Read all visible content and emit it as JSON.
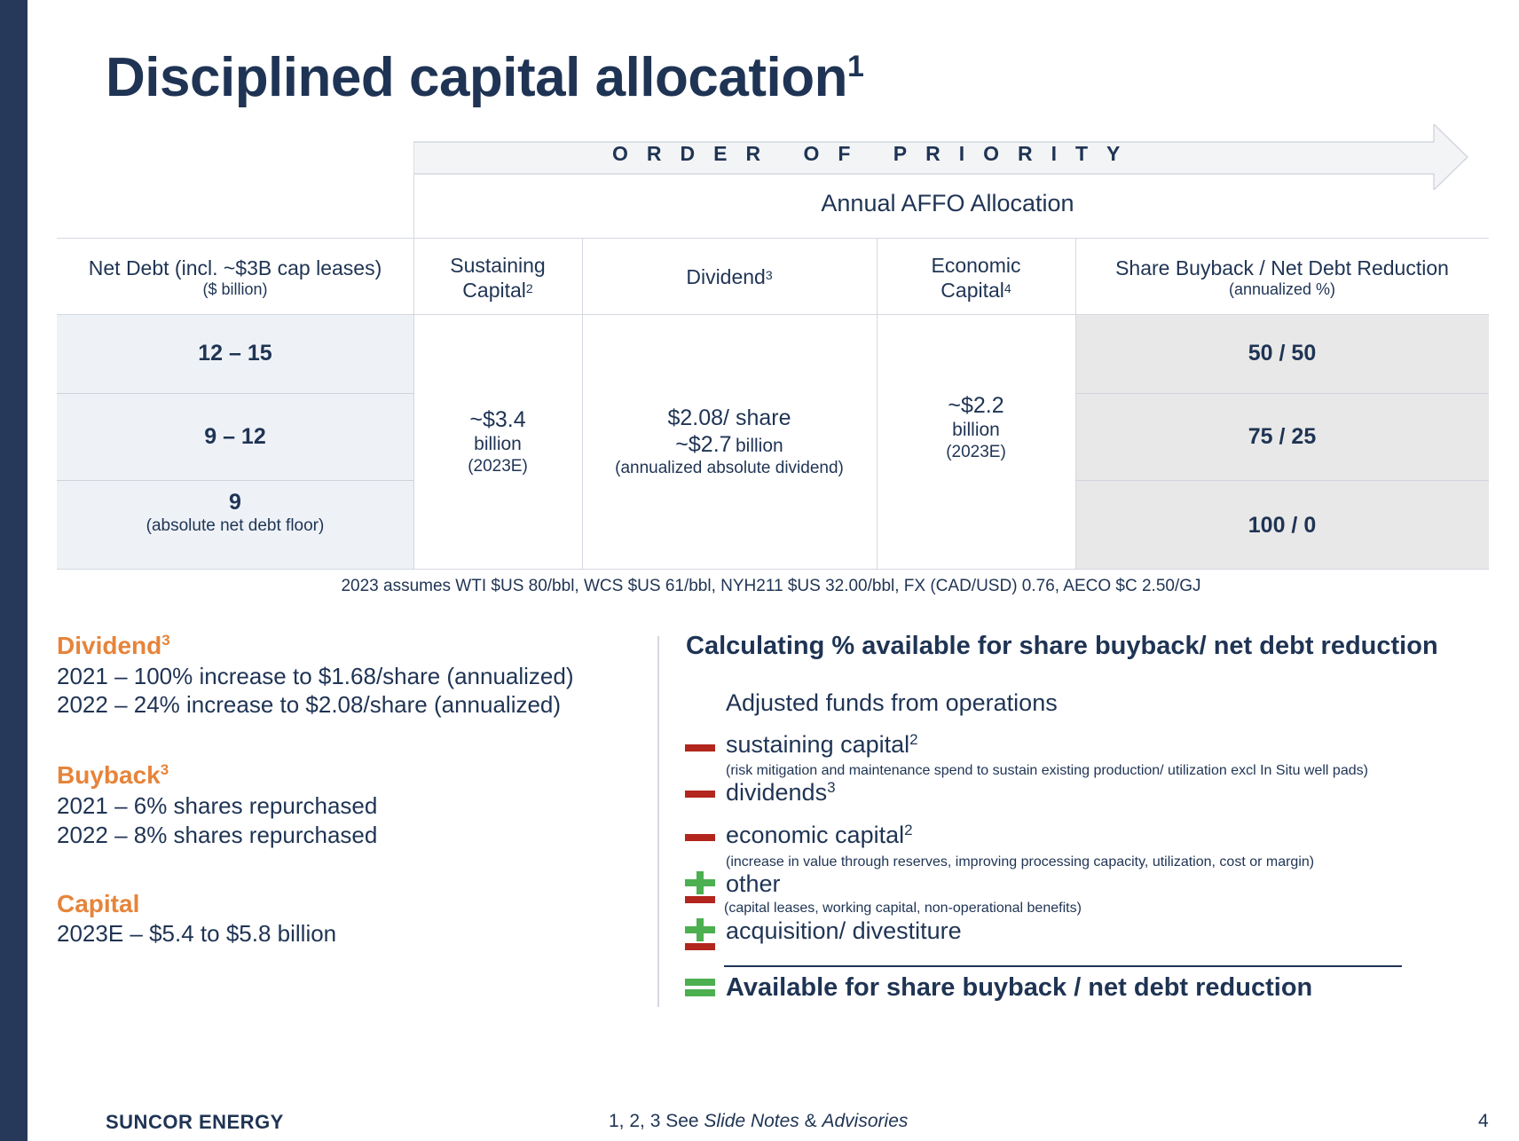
{
  "title": {
    "text": "Disciplined capital allocation",
    "sup": "1"
  },
  "header": {
    "priority": "ORDER OF PRIORITY",
    "affo": "Annual AFFO Allocation"
  },
  "table": {
    "columns": {
      "net_debt": {
        "label": "Net Debt (incl. ~$3B cap leases)",
        "sub": "($ billion)"
      },
      "sustaining": {
        "line1": "Sustaining",
        "line2": "Capital",
        "sup": "2"
      },
      "dividend": {
        "label": "Dividend",
        "sup": "3"
      },
      "economic": {
        "line1": "Economic",
        "line2": "Capital",
        "sup": "4"
      },
      "buyback": {
        "label": "Share Buyback / Net Debt Reduction",
        "sub": "(annualized %)"
      }
    },
    "net_debt_rows": [
      {
        "value": "12 – 15",
        "sub": ""
      },
      {
        "value": "9 – 12",
        "sub": ""
      },
      {
        "value": "9",
        "sub": "(absolute net debt floor)"
      }
    ],
    "buyback_rows": [
      "50 / 50",
      "75 / 25",
      "100 / 0"
    ],
    "sustaining_value": {
      "amount": "~$3.4",
      "unit": "billion",
      "period": "(2023E)"
    },
    "dividend_value": {
      "per_share": "$2.08/ share",
      "amount": "~$2.7",
      "unit": "billion",
      "note": "(annualized absolute dividend)"
    },
    "economic_value": {
      "amount": "~$2.2",
      "unit": "billion",
      "period": "(2023E)"
    }
  },
  "assumption": "2023 assumes WTI $US 80/bbl, WCS $US 61/bbl, NYH211  $US 32.00/bbl, FX (CAD/USD) 0.76, AECO $C 2.50/GJ",
  "left_sections": [
    {
      "head": "Dividend",
      "sup": "3",
      "lines": [
        "2021 – 100% increase to $1.68/share (annualized)",
        "2022 – 24% increase to $2.08/share (annualized)"
      ]
    },
    {
      "head": "Buyback",
      "sup": "3",
      "lines": [
        "2021 – 6% shares repurchased",
        "2022 – 8% shares repurchased"
      ]
    },
    {
      "head": "Capital",
      "sup": "",
      "lines": [
        "2023E – $5.4 to $5.8 billion"
      ]
    }
  ],
  "calc": {
    "title": "Calculating % available for share buyback/ net debt reduction",
    "afo": "Adjusted funds from operations",
    "items": [
      {
        "label": "sustaining capital",
        "sup": "2",
        "sub": "(risk mitigation  and maintenance  spend to sustain  existing  production/ utilization  excl In Situ well pads)",
        "sign": "minus"
      },
      {
        "label": "dividends",
        "sup": "3",
        "sub": "",
        "sign": "minus"
      },
      {
        "label": "economic capital",
        "sup": "2",
        "sub": "(increase  in value through reserves, improving  processing  capacity, utilization,  cost  or margin)",
        "sign": "minus"
      },
      {
        "label": "other",
        "sup": "",
        "sub": "(capital  leases,  working  capital, non-operational  benefits)",
        "sign": "plus-minus"
      },
      {
        "label": "acquisition/ divestiture",
        "sup": "",
        "sub": "",
        "sign": "plus-minus"
      }
    ],
    "result": "Available for share buyback / net debt reduction",
    "sign_colors": {
      "minus": "#b3261e",
      "plus": "#4caf50"
    }
  },
  "footer": {
    "brand": "SUNCOR ENERGY",
    "notes_prefix": "1, 2, 3 See ",
    "notes_link1": "Slide Notes",
    "notes_amp": " & ",
    "notes_link2": "Advisories",
    "page": "4"
  }
}
